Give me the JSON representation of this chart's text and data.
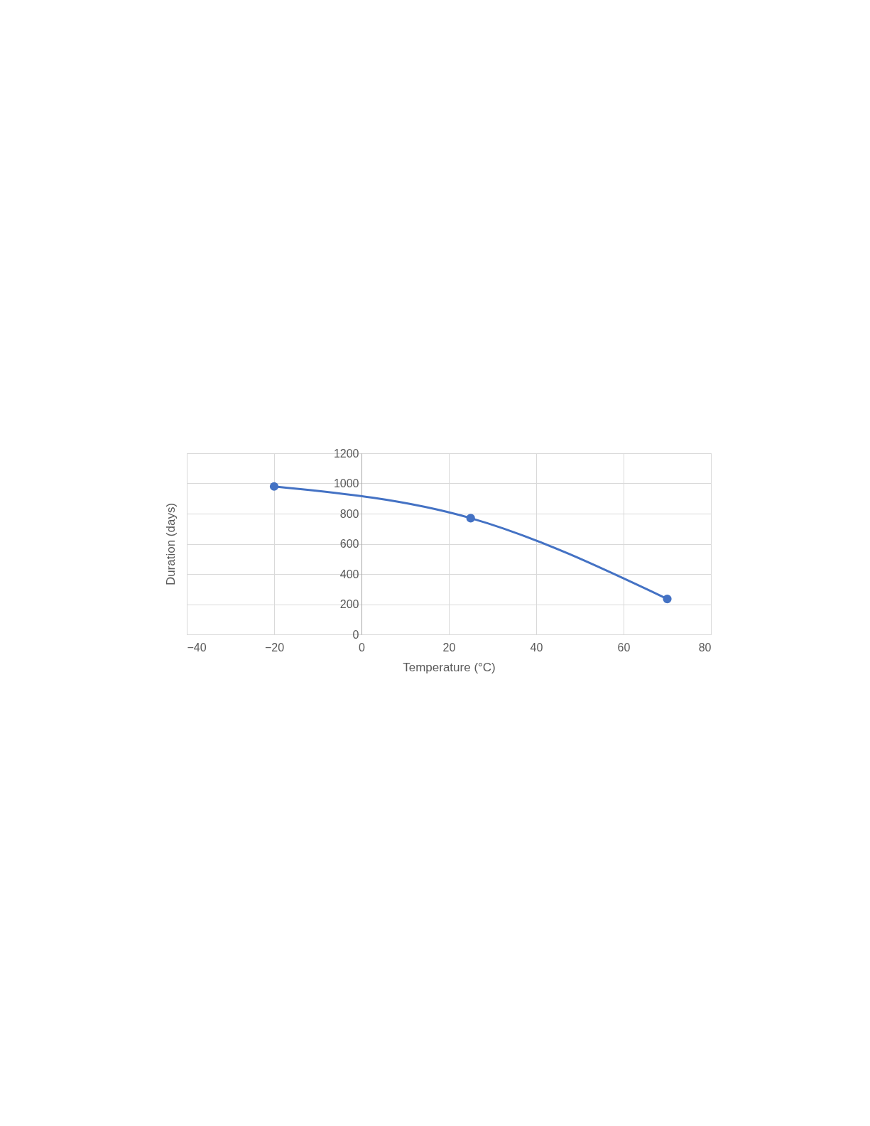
{
  "chart_data": {
    "type": "line",
    "xlabel": "Temperature (°C)",
    "ylabel": "Duration (days)",
    "x": [
      -20,
      25,
      70
    ],
    "series": [
      {
        "color": "#4472c4",
        "values": [
          980,
          770,
          235
        ]
      }
    ],
    "xlim": [
      -40,
      80
    ],
    "xticks": [
      -40,
      -20,
      0,
      20,
      40,
      60,
      80
    ],
    "ylim": [
      0,
      1200
    ],
    "yticks": [
      0,
      200,
      400,
      600,
      800,
      1000,
      1200
    ],
    "grid": true,
    "marker": "circle",
    "line_style": "solid"
  }
}
